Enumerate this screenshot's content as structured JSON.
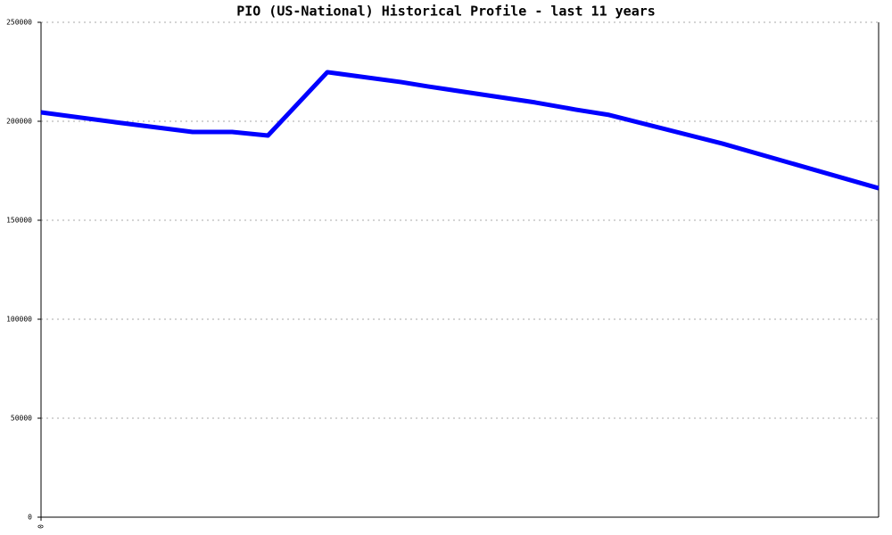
{
  "chart_data": {
    "type": "line",
    "title": "PIO (US-National) Historical Profile - last 11 years",
    "x": [
      0,
      0.98,
      1.99,
      2.51,
      2.98,
      3.76,
      4.73,
      5.08,
      6.49,
      7.02,
      7.46,
      8.95,
      11
    ],
    "series": [
      {
        "color": "#0000ff",
        "values": [
          204500,
          199500,
          194600,
          194600,
          192800,
          224800,
          219800,
          217600,
          209500,
          205900,
          203200,
          188700,
          166200
        ]
      }
    ],
    "xlim": [
      0,
      11
    ],
    "xticks": [
      0
    ],
    "ylim": [
      0,
      250000
    ],
    "yticks": [
      0,
      50000,
      100000,
      150000,
      200000,
      250000
    ],
    "grid": true
  }
}
